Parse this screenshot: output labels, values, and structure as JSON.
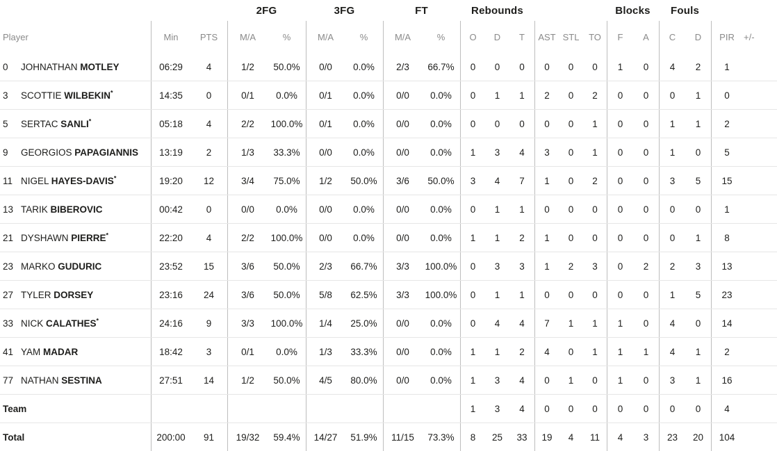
{
  "table": {
    "group_headers": {
      "fg2": "2FG",
      "fg3": "3FG",
      "ft": "FT",
      "rebounds": "Rebounds",
      "blocks": "Blocks",
      "fouls": "Fouls"
    },
    "columns": {
      "player": "Player",
      "min": "Min",
      "pts": "PTS",
      "ma": "M/A",
      "pct": "%",
      "o": "O",
      "d": "D",
      "t": "T",
      "ast": "AST",
      "stl": "STL",
      "to": "TO",
      "block_f": "F",
      "block_a": "A",
      "foul_c": "C",
      "foul_d": "D",
      "pir": "PIR",
      "plus_minus": "+/-"
    },
    "rows": [
      {
        "num": "0",
        "first": "JOHNATHAN",
        "last": "MOTLEY",
        "star": "",
        "min": "06:29",
        "pts": "4",
        "fg2_ma": "1/2",
        "fg2_pct": "50.0%",
        "fg3_ma": "0/0",
        "fg3_pct": "0.0%",
        "ft_ma": "2/3",
        "ft_pct": "66.7%",
        "reb_o": "0",
        "reb_d": "0",
        "reb_t": "0",
        "ast": "0",
        "stl": "0",
        "to": "0",
        "blk_f": "1",
        "blk_a": "0",
        "foul_c": "4",
        "foul_d": "2",
        "pir": "1",
        "pm": ""
      },
      {
        "num": "3",
        "first": "SCOTTIE",
        "last": "WILBEKIN",
        "star": "*",
        "min": "14:35",
        "pts": "0",
        "fg2_ma": "0/1",
        "fg2_pct": "0.0%",
        "fg3_ma": "0/1",
        "fg3_pct": "0.0%",
        "ft_ma": "0/0",
        "ft_pct": "0.0%",
        "reb_o": "0",
        "reb_d": "1",
        "reb_t": "1",
        "ast": "2",
        "stl": "0",
        "to": "2",
        "blk_f": "0",
        "blk_a": "0",
        "foul_c": "0",
        "foul_d": "1",
        "pir": "0",
        "pm": ""
      },
      {
        "num": "5",
        "first": "SERTAC",
        "last": "SANLI",
        "star": "*",
        "min": "05:18",
        "pts": "4",
        "fg2_ma": "2/2",
        "fg2_pct": "100.0%",
        "fg3_ma": "0/1",
        "fg3_pct": "0.0%",
        "ft_ma": "0/0",
        "ft_pct": "0.0%",
        "reb_o": "0",
        "reb_d": "0",
        "reb_t": "0",
        "ast": "0",
        "stl": "0",
        "to": "1",
        "blk_f": "0",
        "blk_a": "0",
        "foul_c": "1",
        "foul_d": "1",
        "pir": "2",
        "pm": ""
      },
      {
        "num": "9",
        "first": "GEORGIOS",
        "last": "PAPAGIANNIS",
        "star": "",
        "min": "13:19",
        "pts": "2",
        "fg2_ma": "1/3",
        "fg2_pct": "33.3%",
        "fg3_ma": "0/0",
        "fg3_pct": "0.0%",
        "ft_ma": "0/0",
        "ft_pct": "0.0%",
        "reb_o": "1",
        "reb_d": "3",
        "reb_t": "4",
        "ast": "3",
        "stl": "0",
        "to": "1",
        "blk_f": "0",
        "blk_a": "0",
        "foul_c": "1",
        "foul_d": "0",
        "pir": "5",
        "pm": ""
      },
      {
        "num": "11",
        "first": "NIGEL",
        "last": "HAYES-DAVIS",
        "star": "*",
        "min": "19:20",
        "pts": "12",
        "fg2_ma": "3/4",
        "fg2_pct": "75.0%",
        "fg3_ma": "1/2",
        "fg3_pct": "50.0%",
        "ft_ma": "3/6",
        "ft_pct": "50.0%",
        "reb_o": "3",
        "reb_d": "4",
        "reb_t": "7",
        "ast": "1",
        "stl": "0",
        "to": "2",
        "blk_f": "0",
        "blk_a": "0",
        "foul_c": "3",
        "foul_d": "5",
        "pir": "15",
        "pm": ""
      },
      {
        "num": "13",
        "first": "TARIK",
        "last": "BIBEROVIC",
        "star": "",
        "min": "00:42",
        "pts": "0",
        "fg2_ma": "0/0",
        "fg2_pct": "0.0%",
        "fg3_ma": "0/0",
        "fg3_pct": "0.0%",
        "ft_ma": "0/0",
        "ft_pct": "0.0%",
        "reb_o": "0",
        "reb_d": "1",
        "reb_t": "1",
        "ast": "0",
        "stl": "0",
        "to": "0",
        "blk_f": "0",
        "blk_a": "0",
        "foul_c": "0",
        "foul_d": "0",
        "pir": "1",
        "pm": ""
      },
      {
        "num": "21",
        "first": "DYSHAWN",
        "last": "PIERRE",
        "star": "*",
        "min": "22:20",
        "pts": "4",
        "fg2_ma": "2/2",
        "fg2_pct": "100.0%",
        "fg3_ma": "0/0",
        "fg3_pct": "0.0%",
        "ft_ma": "0/0",
        "ft_pct": "0.0%",
        "reb_o": "1",
        "reb_d": "1",
        "reb_t": "2",
        "ast": "1",
        "stl": "0",
        "to": "0",
        "blk_f": "0",
        "blk_a": "0",
        "foul_c": "0",
        "foul_d": "1",
        "pir": "8",
        "pm": ""
      },
      {
        "num": "23",
        "first": "MARKO",
        "last": "GUDURIC",
        "star": "",
        "min": "23:52",
        "pts": "15",
        "fg2_ma": "3/6",
        "fg2_pct": "50.0%",
        "fg3_ma": "2/3",
        "fg3_pct": "66.7%",
        "ft_ma": "3/3",
        "ft_pct": "100.0%",
        "reb_o": "0",
        "reb_d": "3",
        "reb_t": "3",
        "ast": "1",
        "stl": "2",
        "to": "3",
        "blk_f": "0",
        "blk_a": "2",
        "foul_c": "2",
        "foul_d": "3",
        "pir": "13",
        "pm": ""
      },
      {
        "num": "27",
        "first": "TYLER",
        "last": "DORSEY",
        "star": "",
        "min": "23:16",
        "pts": "24",
        "fg2_ma": "3/6",
        "fg2_pct": "50.0%",
        "fg3_ma": "5/8",
        "fg3_pct": "62.5%",
        "ft_ma": "3/3",
        "ft_pct": "100.0%",
        "reb_o": "0",
        "reb_d": "1",
        "reb_t": "1",
        "ast": "0",
        "stl": "0",
        "to": "0",
        "blk_f": "0",
        "blk_a": "0",
        "foul_c": "1",
        "foul_d": "5",
        "pir": "23",
        "pm": ""
      },
      {
        "num": "33",
        "first": "NICK",
        "last": "CALATHES",
        "star": "*",
        "min": "24:16",
        "pts": "9",
        "fg2_ma": "3/3",
        "fg2_pct": "100.0%",
        "fg3_ma": "1/4",
        "fg3_pct": "25.0%",
        "ft_ma": "0/0",
        "ft_pct": "0.0%",
        "reb_o": "0",
        "reb_d": "4",
        "reb_t": "4",
        "ast": "7",
        "stl": "1",
        "to": "1",
        "blk_f": "1",
        "blk_a": "0",
        "foul_c": "4",
        "foul_d": "0",
        "pir": "14",
        "pm": ""
      },
      {
        "num": "41",
        "first": "YAM",
        "last": "MADAR",
        "star": "",
        "min": "18:42",
        "pts": "3",
        "fg2_ma": "0/1",
        "fg2_pct": "0.0%",
        "fg3_ma": "1/3",
        "fg3_pct": "33.3%",
        "ft_ma": "0/0",
        "ft_pct": "0.0%",
        "reb_o": "1",
        "reb_d": "1",
        "reb_t": "2",
        "ast": "4",
        "stl": "0",
        "to": "1",
        "blk_f": "1",
        "blk_a": "1",
        "foul_c": "4",
        "foul_d": "1",
        "pir": "2",
        "pm": ""
      },
      {
        "num": "77",
        "first": "NATHAN",
        "last": "SESTINA",
        "star": "",
        "min": "27:51",
        "pts": "14",
        "fg2_ma": "1/2",
        "fg2_pct": "50.0%",
        "fg3_ma": "4/5",
        "fg3_pct": "80.0%",
        "ft_ma": "0/0",
        "ft_pct": "0.0%",
        "reb_o": "1",
        "reb_d": "3",
        "reb_t": "4",
        "ast": "0",
        "stl": "1",
        "to": "0",
        "blk_f": "1",
        "blk_a": "0",
        "foul_c": "3",
        "foul_d": "1",
        "pir": "16",
        "pm": ""
      }
    ],
    "team_row": {
      "label": "Team",
      "num": "",
      "first": "",
      "last": "",
      "star": "",
      "min": "",
      "pts": "",
      "fg2_ma": "",
      "fg2_pct": "",
      "fg3_ma": "",
      "fg3_pct": "",
      "ft_ma": "",
      "ft_pct": "",
      "reb_o": "1",
      "reb_d": "3",
      "reb_t": "4",
      "ast": "0",
      "stl": "0",
      "to": "0",
      "blk_f": "0",
      "blk_a": "0",
      "foul_c": "0",
      "foul_d": "0",
      "pir": "4",
      "pm": ""
    },
    "total_row": {
      "label": "Total",
      "num": "",
      "first": "",
      "last": "",
      "star": "",
      "min": "200:00",
      "pts": "91",
      "fg2_ma": "19/32",
      "fg2_pct": "59.4%",
      "fg3_ma": "14/27",
      "fg3_pct": "51.9%",
      "ft_ma": "11/15",
      "ft_pct": "73.3%",
      "reb_o": "8",
      "reb_d": "25",
      "reb_t": "33",
      "ast": "19",
      "stl": "4",
      "to": "11",
      "blk_f": "4",
      "blk_a": "3",
      "foul_c": "23",
      "foul_d": "20",
      "pir": "104",
      "pm": ""
    }
  },
  "theme": {
    "text_dark": "#1d1d1b",
    "text_gray": "#8a8a8a",
    "v_line": "#bdbdbd",
    "h_line": "#e6e6e6",
    "background": "#ffffff"
  }
}
